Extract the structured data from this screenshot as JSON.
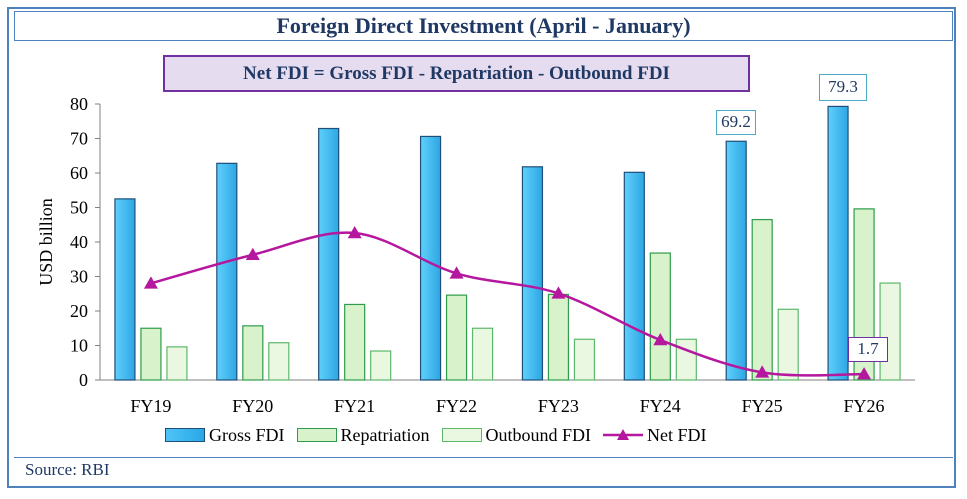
{
  "title": "Foreign Direct Investment (April - January)",
  "formula": "Net FDI = Gross FDI - Repatriation - Outbound FDI",
  "source": "Source: RBI",
  "colors": {
    "gross": "#3cb8f0",
    "repatriation": "#d8f2cc",
    "outbound": "#eaf8e2",
    "net": "#b5179e",
    "frame": "#4f81bd"
  },
  "chart_data": {
    "type": "bar",
    "ylabel": "USD billion",
    "xlabel": "",
    "ylim": [
      0,
      80
    ],
    "yticks": [
      0,
      10,
      20,
      30,
      40,
      50,
      60,
      70,
      80
    ],
    "categories": [
      "FY19",
      "FY20",
      "FY21",
      "FY22",
      "FY23",
      "FY24",
      "FY25",
      "FY26"
    ],
    "series": [
      {
        "name": "Gross FDI",
        "type": "bar",
        "values": [
          52.5,
          62.8,
          72.9,
          70.6,
          61.8,
          60.2,
          69.2,
          79.3
        ]
      },
      {
        "name": "Repatriation",
        "type": "bar",
        "values": [
          15.0,
          15.7,
          21.9,
          24.6,
          24.8,
          36.8,
          46.5,
          49.6
        ]
      },
      {
        "name": "Outbound FDI",
        "type": "bar",
        "values": [
          9.6,
          10.8,
          8.4,
          15.0,
          11.8,
          11.8,
          20.5,
          28.1
        ]
      },
      {
        "name": "Net FDI",
        "type": "line",
        "values": [
          28.0,
          36.3,
          42.6,
          30.9,
          25.1,
          11.6,
          2.2,
          1.7
        ]
      }
    ],
    "annotations": [
      {
        "series": "Gross FDI",
        "category": "FY25",
        "label": "69.2"
      },
      {
        "series": "Gross FDI",
        "category": "FY26",
        "label": "79.3"
      },
      {
        "series": "Net FDI",
        "category": "FY26",
        "label": "1.7"
      }
    ],
    "legend": [
      "Gross FDI",
      "Repatriation",
      "Outbound FDI",
      "Net FDI"
    ],
    "legend_position": "bottom"
  }
}
